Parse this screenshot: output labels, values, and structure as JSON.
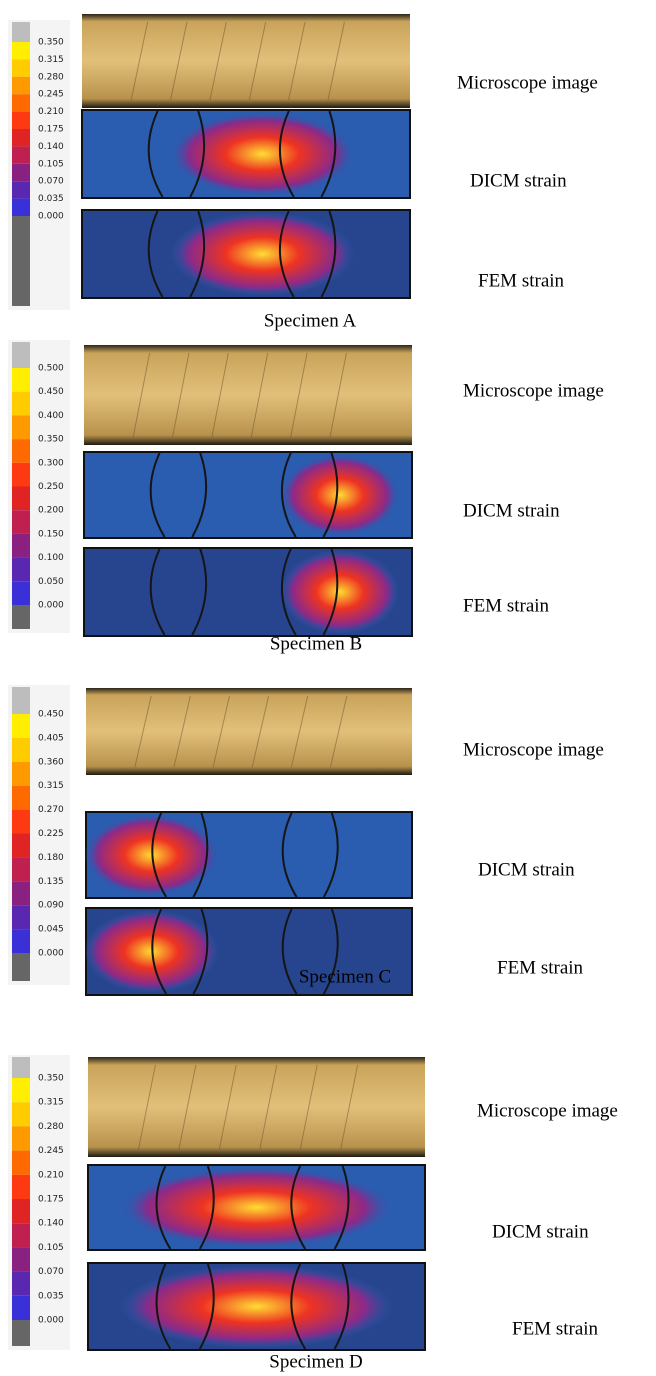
{
  "specimens": [
    {
      "name": "Specimen A",
      "ticks": [
        "0.350",
        "0.315",
        "0.280",
        "0.245",
        "0.210",
        "0.175",
        "0.140",
        "0.105",
        "0.070",
        "0.035",
        "0.000"
      ],
      "panels": [
        "Microscope image",
        "DICM strain",
        "FEM strain"
      ]
    },
    {
      "name": "Specimen B",
      "ticks": [
        "0.500",
        "0.450",
        "0.400",
        "0.350",
        "0.300",
        "0.250",
        "0.200",
        "0.150",
        "0.100",
        "0.050",
        "0.000"
      ],
      "panels": [
        "Microscope image",
        "DICM strain",
        "FEM strain"
      ]
    },
    {
      "name": "Specimen C",
      "ticks": [
        "0.450",
        "0.405",
        "0.360",
        "0.315",
        "0.270",
        "0.225",
        "0.180",
        "0.135",
        "0.090",
        "0.045",
        "0.000"
      ],
      "panels": [
        "Microscope image",
        "DICM strain",
        "FEM strain"
      ]
    },
    {
      "name": "Specimen D",
      "ticks": [
        "0.350",
        "0.315",
        "0.280",
        "0.245",
        "0.210",
        "0.175",
        "0.140",
        "0.105",
        "0.070",
        "0.035",
        "0.000"
      ],
      "panels": [
        "Microscope image",
        "DICM strain",
        "FEM strain"
      ]
    }
  ]
}
